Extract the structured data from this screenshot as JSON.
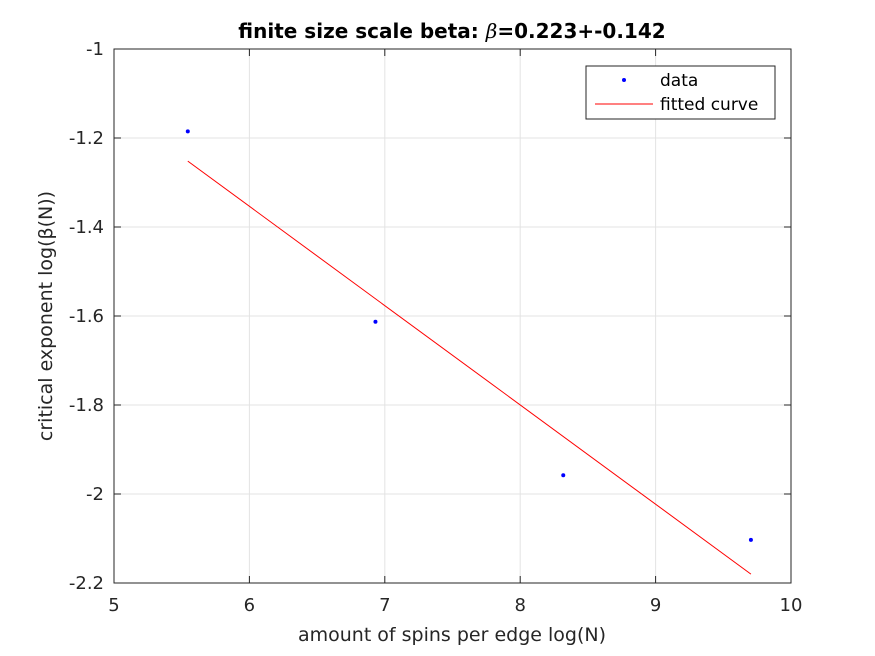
{
  "chart_data": {
    "type": "scatter",
    "title_prefix": "finite size scale beta: ",
    "title_symbol": "β",
    "title_suffix": "=0.223+-0.142",
    "xlabel": "amount of spins per edge log(N)",
    "ylabel": "critical exponent log(β(N))",
    "xlim": [
      5,
      10
    ],
    "ylim": [
      -2.2,
      -1
    ],
    "xticks": [
      5,
      6,
      7,
      8,
      9,
      10
    ],
    "yticks": [
      -2.2,
      -2,
      -1.8,
      -1.6,
      -1.4,
      -1.2,
      -1
    ],
    "xtick_labels": [
      "5",
      "6",
      "7",
      "8",
      "9",
      "10"
    ],
    "ytick_labels": [
      "-2.2",
      "-2",
      "-1.8",
      "-1.6",
      "-1.4",
      "-1.2",
      "-1"
    ],
    "grid": true,
    "legend_position": "top-right",
    "series": [
      {
        "name": "data",
        "kind": "markers",
        "color": "#0000ff",
        "x": [
          5.545,
          6.931,
          8.318,
          9.704
        ],
        "y": [
          -1.185,
          -1.613,
          -1.958,
          -2.103
        ]
      },
      {
        "name": "fitted curve",
        "kind": "line",
        "color": "#ff0000",
        "x": [
          5.545,
          9.704
        ],
        "y": [
          -1.252,
          -2.18
        ]
      }
    ]
  }
}
